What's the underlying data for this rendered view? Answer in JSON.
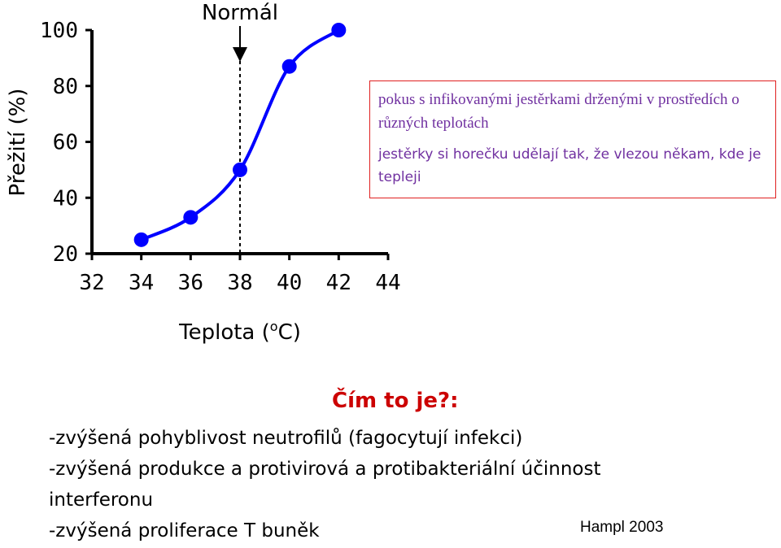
{
  "chart_data": {
    "type": "line",
    "x": [
      34,
      36,
      38,
      40,
      42
    ],
    "series": [
      {
        "values": [
          25,
          33,
          50,
          87,
          100
        ]
      }
    ],
    "xlabel": "Teplota (",
    "xlabel_sup": "o",
    "xlabel_end": "C)",
    "ylabel": "Přežití (%)",
    "xlim": [
      32,
      44
    ],
    "ylim": [
      20,
      100
    ],
    "xticks": [
      32,
      34,
      36,
      38,
      40,
      42,
      44
    ],
    "yticks": [
      20,
      40,
      60,
      80,
      100
    ],
    "annotation": {
      "label": "Normál",
      "x": 38
    },
    "line_color": "#0000ff",
    "grid": false
  },
  "info_box": {
    "line1": "pokus s infikovanými jestěrkami drženými v prostředích o různých teplotách",
    "line2": "jestěrky si horečku udělají tak, že vlezou někam, kde je tepleji",
    "text_color": "#7030a0",
    "border_color": "#e02020"
  },
  "question": "Čím to je?:",
  "bullets": [
    "-zvýšená pohyblivost neutrofilů (fagocytují infekci)",
    "-zvýšená produkce a protivirová a protibakteriální účinnost",
    "interferonu",
    "-zvýšená proliferace T buněk"
  ],
  "source": "Hampl 2003"
}
